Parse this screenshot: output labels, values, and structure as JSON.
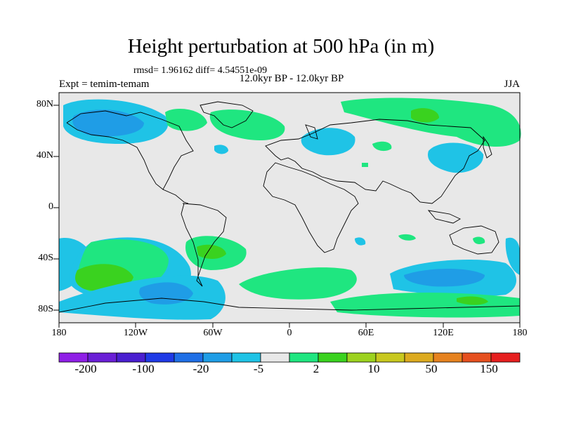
{
  "title": "Height perturbation at 500 hPa (in m)",
  "stats": "rmsd= 1.96162 diff= 4.54551e-09",
  "left_label": "Expt = temim-temam",
  "center_label": "12.0kyr BP - 12.0kyr BP",
  "right_label": "JJA",
  "lat_labels": [
    "80N",
    "40N",
    "0",
    "40S",
    "80S"
  ],
  "lon_labels": [
    "180",
    "120W",
    "60W",
    "0",
    "60E",
    "120E",
    "180"
  ],
  "colorbar": {
    "colors": [
      "#8f1fe6",
      "#6a1fd6",
      "#4a1fd0",
      "#1f3ae6",
      "#1f6fe6",
      "#1f9de6",
      "#1fc3e6",
      "#e8e8e8",
      "#1fe680",
      "#3ad21f",
      "#9cd21f",
      "#c8c81f",
      "#dcaa1f",
      "#e6821f",
      "#e6501f",
      "#e61f1f"
    ],
    "labels": [
      "-200",
      "-100",
      "-20",
      "-5",
      "2",
      "10",
      "50",
      "150"
    ]
  },
  "colors": {
    "background": "#e8e8e8",
    "neg_light": "#1fc3e6",
    "neg_mid": "#1f9de6",
    "pos_light": "#1fe680",
    "pos_mid": "#3ad21f",
    "pos_strong": "#9cd21f"
  }
}
